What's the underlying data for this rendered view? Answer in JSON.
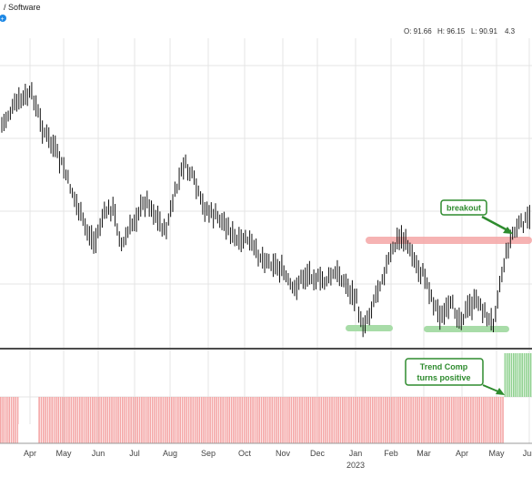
{
  "header": {
    "title": "/ Software",
    "ohlc": [
      {
        "label": "O:",
        "value": "91.66"
      },
      {
        "label": "H:",
        "value": "96.15"
      },
      {
        "label": "L:",
        "value": "90.91"
      },
      {
        "label": "",
        "value": "4.3"
      }
    ]
  },
  "chart_data": {
    "type": "bar",
    "subtype": "ohlc",
    "x_axis": {
      "months": [
        "Apr",
        "May",
        "Jun",
        "Jul",
        "Aug",
        "Sep",
        "Oct",
        "Nov",
        "Dec",
        "Jan",
        "Feb",
        "Mar",
        "Apr",
        "May",
        "Jun"
      ],
      "year_label": "2023"
    },
    "price_panel": {
      "close_trace": [
        [
          0,
          140
        ],
        [
          12,
          122
        ],
        [
          24,
          108
        ],
        [
          36,
          104
        ],
        [
          46,
          140
        ],
        [
          58,
          160
        ],
        [
          70,
          185
        ],
        [
          82,
          218
        ],
        [
          94,
          250
        ],
        [
          104,
          268
        ],
        [
          114,
          235
        ],
        [
          124,
          228
        ],
        [
          134,
          270
        ],
        [
          144,
          250
        ],
        [
          152,
          232
        ],
        [
          162,
          220
        ],
        [
          172,
          238
        ],
        [
          182,
          255
        ],
        [
          192,
          215
        ],
        [
          202,
          180
        ],
        [
          212,
          195
        ],
        [
          222,
          225
        ],
        [
          232,
          235
        ],
        [
          242,
          240
        ],
        [
          252,
          252
        ],
        [
          262,
          268
        ],
        [
          272,
          262
        ],
        [
          282,
          278
        ],
        [
          292,
          285
        ],
        [
          302,
          290
        ],
        [
          312,
          300
        ],
        [
          322,
          320
        ],
        [
          332,
          305
        ],
        [
          342,
          300
        ],
        [
          352,
          310
        ],
        [
          362,
          305
        ],
        [
          372,
          300
        ],
        [
          382,
          315
        ],
        [
          392,
          330
        ],
        [
          398,
          360
        ],
        [
          406,
          345
        ],
        [
          414,
          320
        ],
        [
          422,
          300
        ],
        [
          430,
          280
        ],
        [
          438,
          262
        ],
        [
          446,
          262
        ],
        [
          452,
          280
        ],
        [
          460,
          295
        ],
        [
          468,
          305
        ],
        [
          476,
          330
        ],
        [
          486,
          350
        ],
        [
          496,
          335
        ],
        [
          506,
          350
        ],
        [
          516,
          338
        ],
        [
          526,
          330
        ],
        [
          536,
          350
        ],
        [
          542,
          355
        ],
        [
          548,
          320
        ],
        [
          554,
          290
        ],
        [
          562,
          260
        ],
        [
          570,
          248
        ],
        [
          578,
          243
        ],
        [
          585,
          240
        ]
      ],
      "resistance_zone": {
        "label": "resistance",
        "color": "#f4a6a6"
      },
      "support_zones": [
        {
          "color": "#a8dca8"
        },
        {
          "color": "#a8dca8"
        }
      ],
      "annotations": [
        {
          "text": "breakout",
          "color": "#2e8b2e"
        }
      ]
    },
    "indicator_panel": {
      "series": [
        {
          "label": "negative",
          "color": "#f4a6a6",
          "value": -1
        },
        {
          "label": "positive",
          "color": "#8fd18f",
          "value": 1
        }
      ],
      "annotation": {
        "line1": "Trend Comp",
        "line2": "turns positive",
        "color": "#2e8b2e"
      }
    }
  }
}
